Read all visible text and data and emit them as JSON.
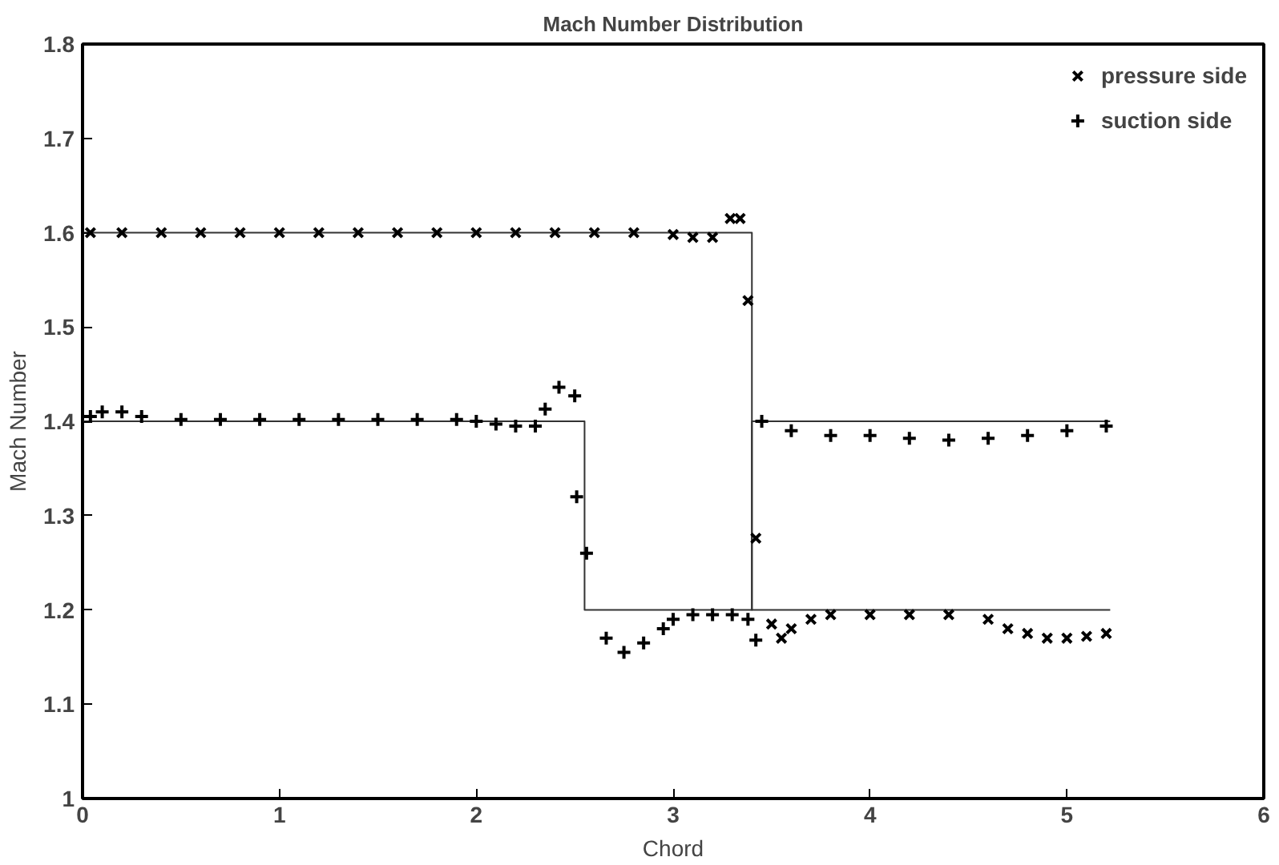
{
  "chart_data": {
    "type": "scatter",
    "title": "Mach Number Distribution",
    "xlabel": "Chord",
    "ylabel": "Mach Number",
    "xlim": [
      0,
      6
    ],
    "ylim": [
      1,
      1.8
    ],
    "xticks": [
      0,
      1,
      2,
      3,
      4,
      5,
      6
    ],
    "yticks": [
      1,
      1.1,
      1.2,
      1.3,
      1.4,
      1.5,
      1.6,
      1.7,
      1.8
    ],
    "grid": false,
    "legend": "top right",
    "series": [
      {
        "name": "pressure side",
        "color": "#000000",
        "marker": "x",
        "x": [
          0.04,
          0.2,
          0.4,
          0.6,
          0.8,
          1.0,
          1.2,
          1.4,
          1.6,
          1.8,
          2.0,
          2.2,
          2.4,
          2.6,
          2.8,
          3.0,
          3.1,
          3.2,
          3.29,
          3.34,
          3.38,
          3.42,
          3.5,
          3.55,
          3.6,
          3.7,
          3.8,
          4.0,
          4.2,
          4.4,
          4.6,
          4.7,
          4.8,
          4.9,
          5.0,
          5.1,
          5.2
        ],
        "values": [
          1.6,
          1.6,
          1.6,
          1.6,
          1.6,
          1.6,
          1.6,
          1.6,
          1.6,
          1.6,
          1.6,
          1.6,
          1.6,
          1.6,
          1.6,
          1.598,
          1.595,
          1.595,
          1.615,
          1.615,
          1.528,
          1.276,
          1.185,
          1.17,
          1.18,
          1.19,
          1.195,
          1.195,
          1.195,
          1.195,
          1.19,
          1.18,
          1.175,
          1.17,
          1.17,
          1.172,
          1.175
        ]
      },
      {
        "name": "suction side",
        "color": "#000000",
        "marker": "cross",
        "x": [
          0.04,
          0.1,
          0.2,
          0.3,
          0.5,
          0.7,
          0.9,
          1.1,
          1.3,
          1.5,
          1.7,
          1.9,
          2.0,
          2.1,
          2.2,
          2.3,
          2.35,
          2.42,
          2.5,
          2.51,
          2.56,
          2.66,
          2.75,
          2.85,
          2.95,
          3.0,
          3.1,
          3.2,
          3.3,
          3.38,
          3.42,
          3.45,
          3.6,
          3.8,
          4.0,
          4.2,
          4.4,
          4.6,
          4.8,
          5.0,
          5.2
        ],
        "values": [
          1.405,
          1.41,
          1.41,
          1.405,
          1.402,
          1.402,
          1.402,
          1.402,
          1.402,
          1.402,
          1.402,
          1.402,
          1.4,
          1.397,
          1.395,
          1.395,
          1.413,
          1.436,
          1.427,
          1.32,
          1.26,
          1.17,
          1.155,
          1.165,
          1.18,
          1.19,
          1.195,
          1.195,
          1.195,
          1.19,
          1.168,
          1.4,
          1.39,
          1.385,
          1.385,
          1.382,
          1.38,
          1.382,
          1.385,
          1.39,
          1.395
        ]
      },
      {
        "type": "line",
        "color": "#333333",
        "x": [
          0,
          3.4,
          3.4,
          5.22
        ],
        "values": [
          1.6,
          1.6,
          1.2,
          1.2
        ]
      },
      {
        "type": "line",
        "color": "#333333",
        "x": [
          0,
          2.55,
          2.55,
          3.4,
          3.4,
          5.22
        ],
        "values": [
          1.4,
          1.4,
          1.2,
          1.2,
          1.4,
          1.4
        ]
      }
    ]
  }
}
